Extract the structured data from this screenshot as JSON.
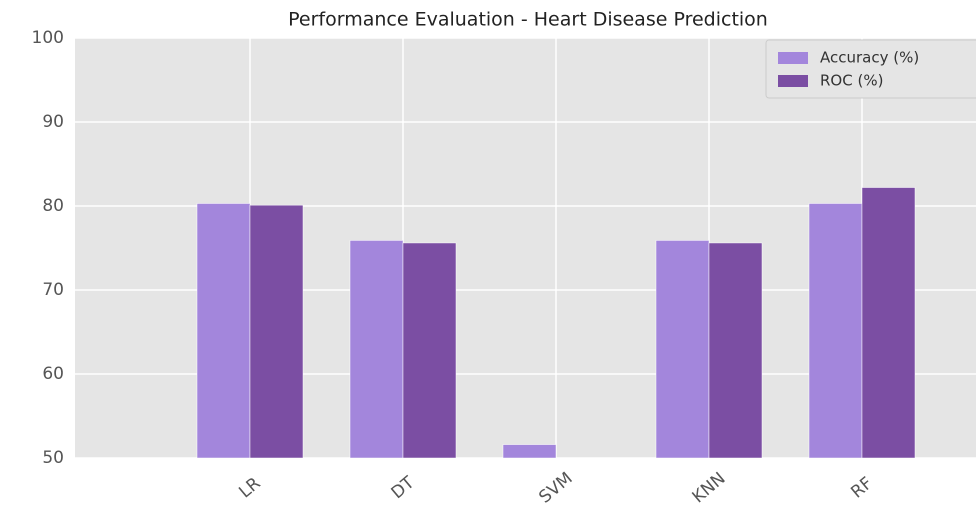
{
  "chart_data": {
    "type": "bar",
    "title": "Performance Evaluation - Heart Disease Prediction",
    "categories": [
      "LR",
      "DT",
      "SVM",
      "KNN",
      "RF"
    ],
    "series": [
      {
        "name": "Accuracy (%)",
        "color": "#a386dc",
        "values": [
          80.3,
          75.9,
          51.6,
          75.9,
          80.3
        ]
      },
      {
        "name": "ROC (%)",
        "color": "#7b4ea3",
        "values": [
          80.1,
          75.6,
          50,
          75.6,
          82.2
        ]
      }
    ],
    "ylim": [
      50,
      100
    ],
    "yticks": [
      50,
      60,
      70,
      80,
      90,
      100
    ],
    "grid": true,
    "legend": "upper right"
  }
}
